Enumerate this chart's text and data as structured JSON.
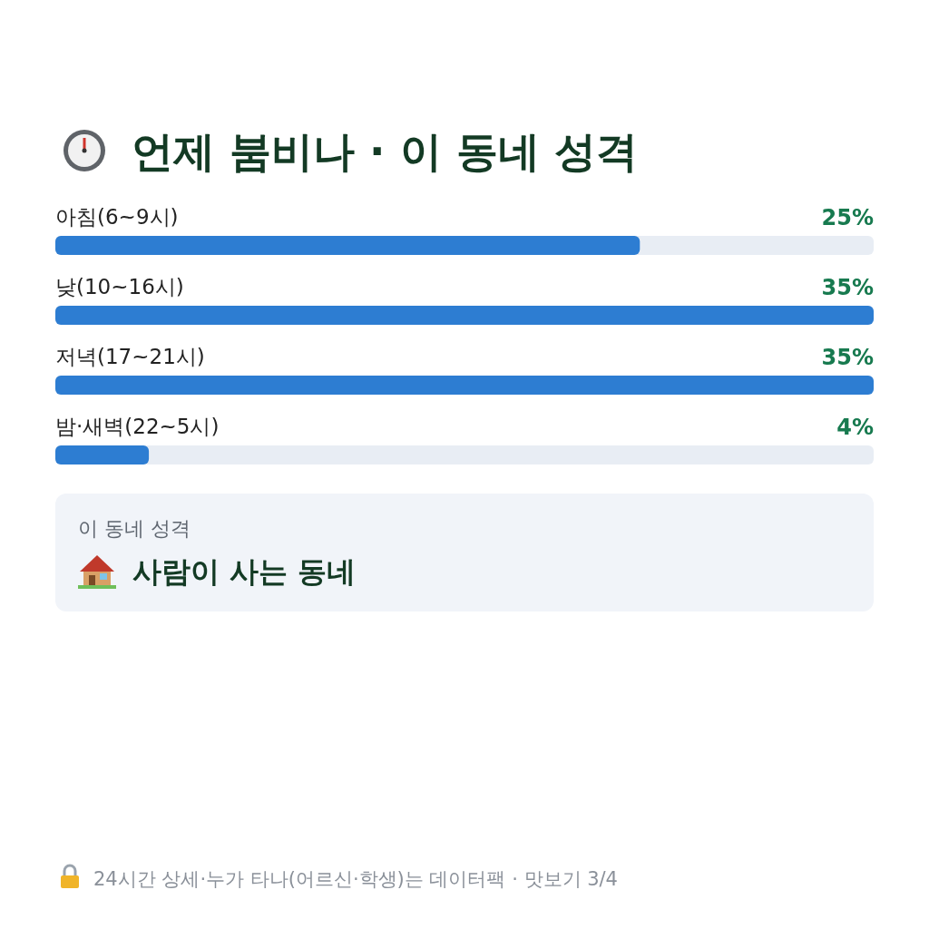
{
  "chart_data": {
    "type": "bar",
    "orientation": "horizontal",
    "title": "언제 붐비나 · 이 동네 성격",
    "categories": [
      "아침(6~9시)",
      "낮(10~16시)",
      "저녁(17~21시)",
      "밤·새벽(22~5시)"
    ],
    "values": [
      25,
      35,
      35,
      4
    ],
    "value_labels": [
      "25%",
      "35%",
      "35%",
      "4%"
    ],
    "color": "#2d7dd2",
    "annotations": [
      "이 동네 성격",
      "사람이 사는 동네",
      "24시간 상세·누가 타나(어르신·학생)는 데이터팩 · 맛보기 3/4"
    ]
  }
}
